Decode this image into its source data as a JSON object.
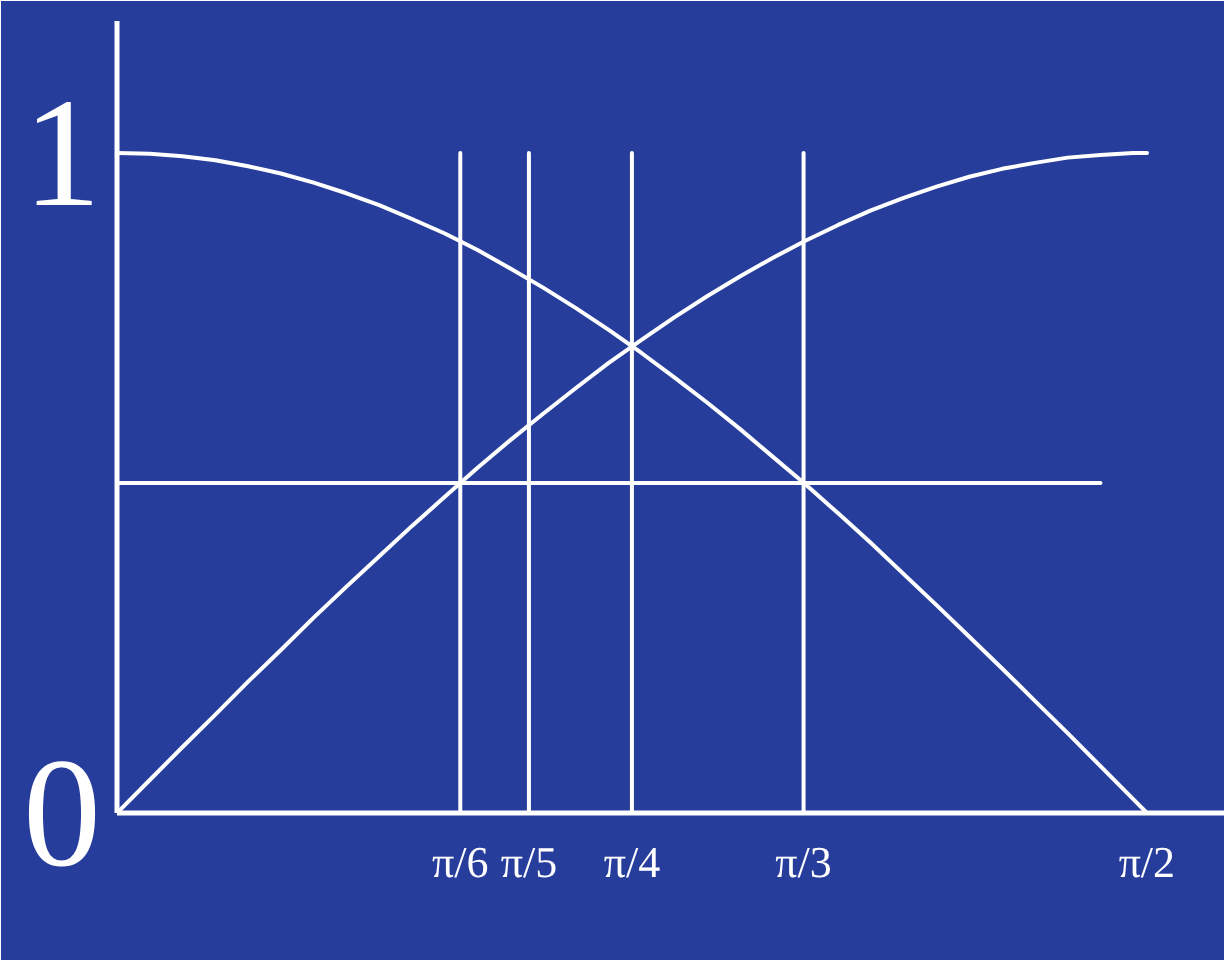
{
  "chart_data": {
    "type": "line",
    "x": [
      0,
      0.05,
      0.1,
      0.15,
      0.2,
      0.25,
      0.3,
      0.35,
      0.4,
      0.45,
      0.5,
      0.55,
      0.6,
      0.65,
      0.7,
      0.75,
      0.8,
      0.85,
      0.9,
      0.95,
      1.0,
      1.05,
      1.1,
      1.15,
      1.2,
      1.25,
      1.3,
      1.35,
      1.4,
      1.45,
      1.5,
      1.55,
      1.571
    ],
    "series": [
      {
        "color": "#ffffff",
        "values": [
          1.0,
          0.999,
          0.995,
          0.989,
          0.98,
          0.969,
          0.955,
          0.939,
          0.921,
          0.9,
          0.878,
          0.853,
          0.825,
          0.796,
          0.765,
          0.732,
          0.697,
          0.66,
          0.622,
          0.582,
          0.54,
          0.498,
          0.454,
          0.409,
          0.362,
          0.315,
          0.267,
          0.219,
          0.17,
          0.121,
          0.071,
          0.021,
          0.0
        ]
      },
      {
        "color": "#ffffff",
        "values": [
          0.0,
          0.05,
          0.1,
          0.149,
          0.199,
          0.247,
          0.296,
          0.343,
          0.389,
          0.435,
          0.479,
          0.523,
          0.565,
          0.605,
          0.644,
          0.682,
          0.717,
          0.751,
          0.783,
          0.813,
          0.841,
          0.867,
          0.891,
          0.913,
          0.932,
          0.949,
          0.964,
          0.976,
          0.985,
          0.993,
          0.997,
          1.0,
          1.0
        ]
      },
      {
        "color": "#ffffff",
        "x": [
          0.5236,
          0.5236
        ],
        "values": [
          0,
          1
        ]
      },
      {
        "color": "#ffffff",
        "x": [
          0.6283,
          0.6283
        ],
        "values": [
          0,
          1
        ]
      },
      {
        "color": "#ffffff",
        "x": [
          0.7854,
          0.7854
        ],
        "values": [
          0,
          1
        ]
      },
      {
        "color": "#ffffff",
        "x": [
          1.0472,
          1.0472
        ],
        "values": [
          0,
          1
        ]
      },
      {
        "color": "#ffffff",
        "x": [
          0,
          1.5
        ],
        "values": [
          0.5,
          0.5
        ]
      }
    ],
    "xlim": [
      0,
      1.69
    ],
    "ylim": [
      0,
      1.2
    ],
    "xticks": [
      {
        "value": 0.5236,
        "label": "π/6"
      },
      {
        "value": 0.6283,
        "label": "π/5"
      },
      {
        "value": 0.7854,
        "label": "π/4"
      },
      {
        "value": 1.0472,
        "label": "π/3"
      },
      {
        "value": 1.5708,
        "label": "π/2"
      }
    ],
    "yticks": [
      0,
      1
    ],
    "grid": false,
    "line_style": "solid"
  }
}
